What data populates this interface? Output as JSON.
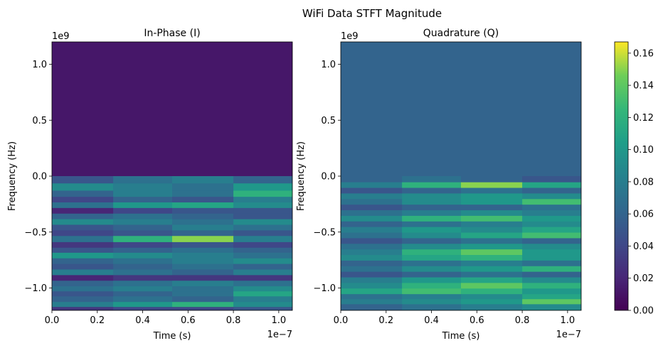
{
  "suptitle": "WiFi Data STFT Magnitude",
  "chart_data": [
    {
      "type": "heatmap",
      "title": "In-Phase (I)",
      "xlabel": "Time (s)",
      "ylabel": "Frequency (Hz)",
      "x_offset_text": "1e−7",
      "y_offset_text": "1e9",
      "xlim": [
        0,
        1.06
      ],
      "ylim": [
        -1.2,
        1.2
      ],
      "x_ticks": [
        "0.0",
        "0.2",
        "0.4",
        "0.6",
        "0.8",
        "1.0"
      ],
      "y_ticks": [
        "−1.0",
        "−0.5",
        "0.0",
        "0.5",
        "1.0"
      ],
      "time_segments": [
        0.0,
        0.27,
        0.53,
        0.8,
        1.06
      ],
      "background_level": 0.012,
      "bands": [
        {
          "freq": -0.03,
          "values": [
            0.05,
            0.07,
            0.08,
            0.06
          ]
        },
        {
          "freq": -0.1,
          "values": [
            0.09,
            0.08,
            0.07,
            0.1
          ]
        },
        {
          "freq": -0.16,
          "values": [
            0.06,
            0.08,
            0.07,
            0.12
          ]
        },
        {
          "freq": -0.21,
          "values": [
            0.04,
            0.06,
            0.05,
            0.08
          ]
        },
        {
          "freq": -0.26,
          "values": [
            0.07,
            0.1,
            0.11,
            0.09
          ]
        },
        {
          "freq": -0.31,
          "values": [
            0.02,
            0.04,
            0.05,
            0.05
          ]
        },
        {
          "freq": -0.36,
          "values": [
            0.06,
            0.07,
            0.06,
            0.05
          ]
        },
        {
          "freq": -0.41,
          "values": [
            0.09,
            0.08,
            0.07,
            0.09
          ]
        },
        {
          "freq": -0.46,
          "values": [
            0.05,
            0.06,
            0.08,
            0.07
          ]
        },
        {
          "freq": -0.51,
          "values": [
            0.04,
            0.05,
            0.06,
            0.05
          ]
        },
        {
          "freq": -0.56,
          "values": [
            0.07,
            0.12,
            0.15,
            0.08
          ]
        },
        {
          "freq": -0.62,
          "values": [
            0.03,
            0.04,
            0.05,
            0.04
          ]
        },
        {
          "freq": -0.66,
          "values": [
            0.05,
            0.06,
            0.07,
            0.06
          ]
        },
        {
          "freq": -0.71,
          "values": [
            0.1,
            0.09,
            0.08,
            0.07
          ]
        },
        {
          "freq": -0.76,
          "values": [
            0.06,
            0.07,
            0.08,
            0.09
          ]
        },
        {
          "freq": -0.81,
          "values": [
            0.05,
            0.06,
            0.07,
            0.06
          ]
        },
        {
          "freq": -0.86,
          "values": [
            0.08,
            0.07,
            0.06,
            0.08
          ]
        },
        {
          "freq": -0.91,
          "values": [
            0.02,
            0.03,
            0.03,
            0.03
          ]
        },
        {
          "freq": -0.96,
          "values": [
            0.06,
            0.07,
            0.08,
            0.07
          ]
        },
        {
          "freq": -1.01,
          "values": [
            0.07,
            0.08,
            0.07,
            0.09
          ]
        },
        {
          "freq": -1.05,
          "values": [
            0.05,
            0.06,
            0.07,
            0.11
          ]
        },
        {
          "freq": -1.1,
          "values": [
            0.06,
            0.07,
            0.06,
            0.08
          ]
        },
        {
          "freq": -1.15,
          "values": [
            0.08,
            0.1,
            0.12,
            0.09
          ]
        },
        {
          "freq": -1.19,
          "values": [
            0.03,
            0.04,
            0.04,
            0.05
          ]
        }
      ]
    },
    {
      "type": "heatmap",
      "title": "Quadrature (Q)",
      "xlabel": "Time (s)",
      "ylabel": "Frequency (Hz)",
      "x_offset_text": "1e−7",
      "y_offset_text": "1e9",
      "xlim": [
        0,
        1.06
      ],
      "ylim": [
        -1.2,
        1.2
      ],
      "x_ticks": [
        "0.0",
        "0.2",
        "0.4",
        "0.6",
        "0.8",
        "1.0"
      ],
      "y_ticks": [
        "−1.0",
        "−0.5",
        "0.0",
        "0.5",
        "1.0"
      ],
      "time_segments": [
        0.0,
        0.27,
        0.53,
        0.8,
        1.06
      ],
      "background_level": 0.06,
      "bands": [
        {
          "freq": -0.03,
          "values": [
            0.06,
            0.07,
            0.06,
            0.05
          ]
        },
        {
          "freq": -0.08,
          "values": [
            0.08,
            0.12,
            0.15,
            0.11
          ]
        },
        {
          "freq": -0.13,
          "values": [
            0.05,
            0.06,
            0.07,
            0.06
          ]
        },
        {
          "freq": -0.18,
          "values": [
            0.08,
            0.09,
            0.1,
            0.09
          ]
        },
        {
          "freq": -0.23,
          "values": [
            0.07,
            0.09,
            0.1,
            0.13
          ]
        },
        {
          "freq": -0.28,
          "values": [
            0.05,
            0.06,
            0.06,
            0.07
          ]
        },
        {
          "freq": -0.33,
          "values": [
            0.07,
            0.08,
            0.09,
            0.08
          ]
        },
        {
          "freq": -0.38,
          "values": [
            0.09,
            0.12,
            0.13,
            0.1
          ]
        },
        {
          "freq": -0.43,
          "values": [
            0.06,
            0.07,
            0.08,
            0.09
          ]
        },
        {
          "freq": -0.48,
          "values": [
            0.08,
            0.1,
            0.09,
            0.11
          ]
        },
        {
          "freq": -0.53,
          "values": [
            0.07,
            0.09,
            0.11,
            0.13
          ]
        },
        {
          "freq": -0.58,
          "values": [
            0.05,
            0.06,
            0.07,
            0.06
          ]
        },
        {
          "freq": -0.63,
          "values": [
            0.07,
            0.09,
            0.1,
            0.09
          ]
        },
        {
          "freq": -0.68,
          "values": [
            0.08,
            0.12,
            0.14,
            0.1
          ]
        },
        {
          "freq": -0.73,
          "values": [
            0.09,
            0.11,
            0.12,
            0.1
          ]
        },
        {
          "freq": -0.78,
          "values": [
            0.06,
            0.07,
            0.08,
            0.07
          ]
        },
        {
          "freq": -0.83,
          "values": [
            0.07,
            0.09,
            0.1,
            0.12
          ]
        },
        {
          "freq": -0.88,
          "values": [
            0.05,
            0.06,
            0.07,
            0.06
          ]
        },
        {
          "freq": -0.93,
          "values": [
            0.08,
            0.1,
            0.11,
            0.09
          ]
        },
        {
          "freq": -0.98,
          "values": [
            0.09,
            0.12,
            0.14,
            0.12
          ]
        },
        {
          "freq": -1.03,
          "values": [
            0.11,
            0.13,
            0.12,
            0.1
          ]
        },
        {
          "freq": -1.08,
          "values": [
            0.07,
            0.08,
            0.09,
            0.11
          ]
        },
        {
          "freq": -1.12,
          "values": [
            0.08,
            0.09,
            0.1,
            0.14
          ]
        },
        {
          "freq": -1.17,
          "values": [
            0.06,
            0.07,
            0.08,
            0.09
          ]
        }
      ]
    }
  ],
  "colorbar": {
    "colormap": "viridis",
    "range": [
      0,
      0.167
    ],
    "ticks": [
      "0.00",
      "0.02",
      "0.04",
      "0.06",
      "0.08",
      "0.10",
      "0.12",
      "0.14",
      "0.16"
    ],
    "tick_values": [
      0,
      0.02,
      0.04,
      0.06,
      0.08,
      0.1,
      0.12,
      0.14,
      0.16
    ]
  }
}
